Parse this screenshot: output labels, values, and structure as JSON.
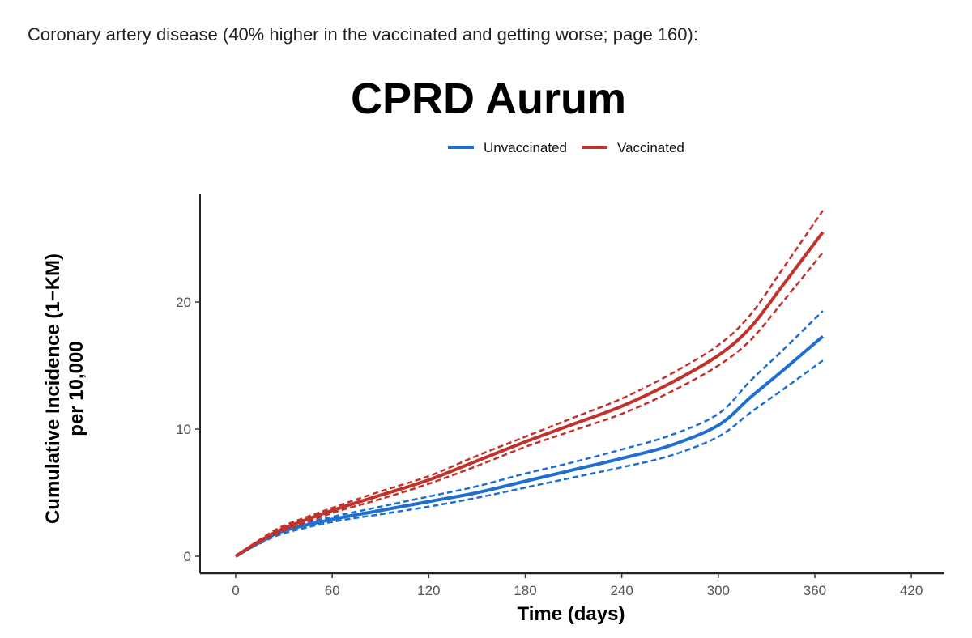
{
  "caption": "Coronary artery disease (40% higher in the vaccinated and getting worse; page 160):",
  "chart_data": {
    "type": "line",
    "title": "CPRD Aurum",
    "xlabel": "Time (days)",
    "ylabel_line1": "Cumulative Incidence (1−KM)",
    "ylabel_line2": "per 10,000",
    "xlim": [
      -10,
      440
    ],
    "ylim": [
      -1,
      28
    ],
    "xticks": [
      0,
      60,
      120,
      180,
      240,
      300,
      360,
      420
    ],
    "yticks": [
      0,
      10,
      20
    ],
    "legend_position": "top",
    "x": [
      0,
      15,
      30,
      60,
      90,
      120,
      150,
      180,
      210,
      240,
      270,
      300,
      320,
      340,
      365
    ],
    "series": [
      {
        "name": "Unvaccinated",
        "color": "#1f6fd1",
        "values": [
          0,
          1.1,
          2.0,
          2.9,
          3.6,
          4.3,
          5.0,
          5.9,
          6.8,
          7.7,
          8.7,
          10.3,
          12.5,
          14.6,
          17.3
        ],
        "upper": [
          0,
          1.2,
          2.2,
          3.1,
          3.9,
          4.7,
          5.5,
          6.5,
          7.4,
          8.4,
          9.5,
          11.2,
          13.8,
          16.2,
          19.3
        ],
        "lower": [
          0,
          1.0,
          1.8,
          2.7,
          3.3,
          3.9,
          4.6,
          5.4,
          6.2,
          7.0,
          7.9,
          9.4,
          11.3,
          13.1,
          15.4
        ]
      },
      {
        "name": "Vaccinated",
        "color": "#c0322b",
        "values": [
          0,
          1.2,
          2.2,
          3.6,
          4.8,
          6.0,
          7.5,
          9.0,
          10.4,
          11.8,
          13.6,
          15.8,
          18.0,
          21.3,
          25.5
        ],
        "upper": [
          0,
          1.3,
          2.4,
          3.8,
          5.1,
          6.3,
          7.9,
          9.4,
          10.9,
          12.4,
          14.3,
          16.6,
          19.0,
          22.6,
          27.2
        ],
        "lower": [
          0,
          1.1,
          2.0,
          3.4,
          4.5,
          5.7,
          7.1,
          8.6,
          9.9,
          11.2,
          12.9,
          15.0,
          17.0,
          20.0,
          23.9
        ]
      }
    ]
  }
}
